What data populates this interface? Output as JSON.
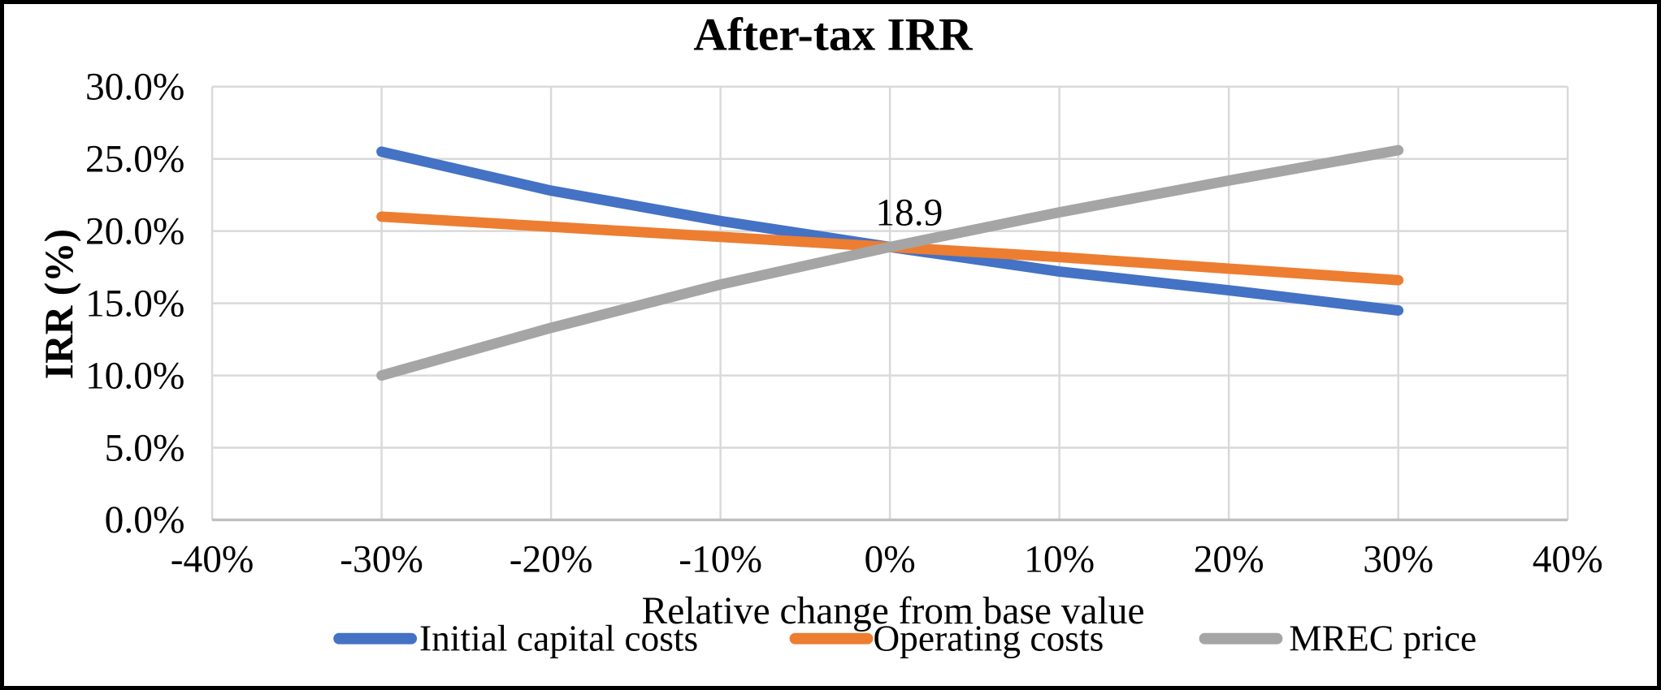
{
  "frame": {
    "background_color": "#ffffff",
    "border_color": "#000000"
  },
  "chart_data": {
    "type": "line",
    "title": "After-tax IRR",
    "xlabel": "Relative change from base value",
    "ylabel": "IRR (%)",
    "x": [
      -30,
      -20,
      -10,
      0,
      10,
      20,
      30
    ],
    "series": [
      {
        "name": "Initial capital costs",
        "color": "#4472C4",
        "values": [
          25.5,
          22.8,
          20.7,
          18.9,
          17.2,
          15.9,
          14.5
        ]
      },
      {
        "name": "Operating costs",
        "color": "#ED7D31",
        "values": [
          21.0,
          20.3,
          19.6,
          18.9,
          18.2,
          17.4,
          16.6
        ]
      },
      {
        "name": "MREC price",
        "color": "#A5A5A5",
        "values": [
          10.0,
          13.3,
          16.3,
          18.9,
          21.3,
          23.5,
          25.6
        ]
      }
    ],
    "annotation": {
      "text": "18.9",
      "at_x": 0,
      "at_y": 18.9
    },
    "x_axis": {
      "min": -40,
      "max": 40,
      "step": 10,
      "tick_labels": [
        "-40%",
        "-30%",
        "-20%",
        "-10%",
        "0%",
        "10%",
        "20%",
        "30%",
        "40%"
      ]
    },
    "y_axis": {
      "min": 0,
      "max": 30,
      "step": 5,
      "tick_labels": [
        "30.0%",
        "25.0%",
        "20.0%",
        "15.0%",
        "10.0%",
        "5.0%",
        "0.0%"
      ]
    },
    "grid": true,
    "legend_position": "bottom",
    "colors": {
      "gridline": "#D9D9D9",
      "axis_line": "#BFBFBF",
      "text": "#000000"
    }
  }
}
